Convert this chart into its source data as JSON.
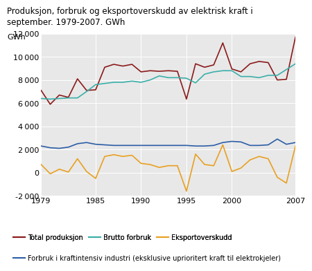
{
  "title_line1": "Produksjon, forbruk og eksportoverskudd av elektrisk kraft i",
  "title_line2": "september. 1979-2007. GWh",
  "ylabel": "GWh",
  "years": [
    1979,
    1980,
    1981,
    1982,
    1983,
    1984,
    1985,
    1986,
    1987,
    1988,
    1989,
    1990,
    1991,
    1992,
    1993,
    1994,
    1995,
    1996,
    1997,
    1998,
    1999,
    2000,
    2001,
    2002,
    2003,
    2004,
    2005,
    2006,
    2007
  ],
  "total_produksjon": [
    7100,
    5900,
    6700,
    6500,
    8100,
    7100,
    7150,
    9100,
    9350,
    9200,
    9350,
    8700,
    8800,
    8750,
    8800,
    8750,
    6350,
    9400,
    9100,
    9300,
    11200,
    8950,
    8700,
    9400,
    9600,
    9500,
    8000,
    8050,
    11700
  ],
  "brutto_forbruk": [
    6400,
    6350,
    6400,
    6450,
    6450,
    7000,
    7600,
    7700,
    7800,
    7800,
    7900,
    7800,
    8000,
    8350,
    8200,
    8200,
    8150,
    7750,
    8500,
    8700,
    8800,
    8800,
    8300,
    8300,
    8200,
    8400,
    8400,
    8900,
    9400
  ],
  "eksportoverskudd": [
    700,
    -100,
    300,
    50,
    1200,
    100,
    -500,
    1400,
    1550,
    1400,
    1500,
    800,
    700,
    450,
    600,
    600,
    -1600,
    1600,
    700,
    600,
    2400,
    100,
    400,
    1100,
    1400,
    1200,
    -400,
    -900,
    2300
  ],
  "kraftintensiv_industri": [
    2300,
    2150,
    2100,
    2200,
    2500,
    2600,
    2450,
    2400,
    2350,
    2350,
    2350,
    2350,
    2350,
    2350,
    2350,
    2350,
    2350,
    2300,
    2300,
    2350,
    2600,
    2700,
    2650,
    2350,
    2350,
    2400,
    2900,
    2450,
    2600
  ],
  "color_produksjon": "#8b1a1a",
  "color_brutto": "#3aafa9",
  "color_eksport": "#e8a020",
  "color_kraft": "#2b5da6",
  "ylim_min": -2000,
  "ylim_max": 12000,
  "yticks": [
    -2000,
    0,
    2000,
    4000,
    6000,
    8000,
    10000,
    12000
  ],
  "xticks": [
    1979,
    1985,
    1990,
    1995,
    2000,
    2007
  ],
  "legend0": "Total produksjon",
  "legend1": "Brutto forbruk",
  "legend2": "Eksportoverskudd",
  "legend3": "Forbruk i kraftintensiv industri (eksklusive uprioritert kraft til elektrokjeler)",
  "plot_bg": "#e8e8e8",
  "grid_color": "#ffffff",
  "title_fontsize": 8.5,
  "tick_fontsize": 8,
  "legend_fontsize": 7.0
}
